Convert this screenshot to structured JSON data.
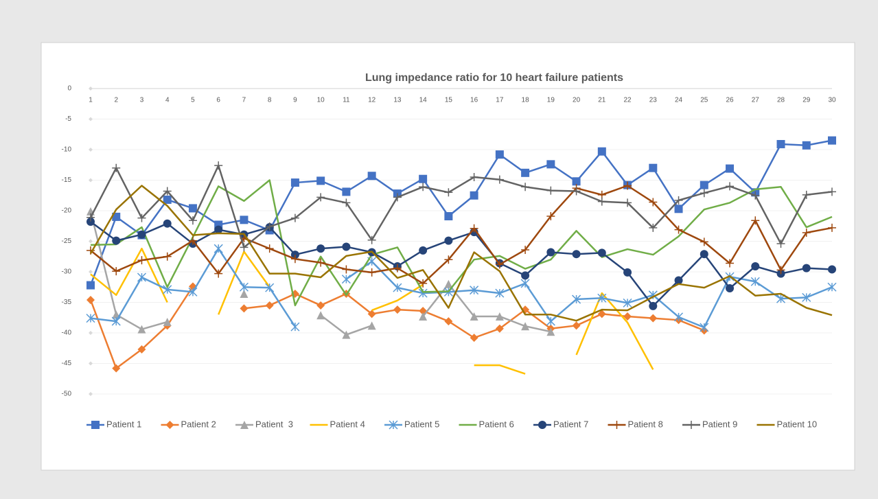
{
  "chart_data": {
    "type": "line",
    "title": "Lung impedance ratio for 10 heart failure patients",
    "categories": [
      "1",
      "2",
      "3",
      "4",
      "5",
      "6",
      "7",
      "8",
      "9",
      "10",
      "11",
      "12",
      "13",
      "14",
      "15",
      "16",
      "17",
      "18",
      "19",
      "20",
      "21",
      "22",
      "23",
      "24",
      "25",
      "26",
      "27",
      "28",
      "29",
      "30"
    ],
    "ylim": [
      -50,
      0
    ],
    "yticks": [
      0,
      -5,
      -10,
      -15,
      -20,
      -25,
      -30,
      -35,
      -40,
      -45,
      -50
    ],
    "grid": true,
    "legend": "bottom",
    "series": [
      {
        "name": "Patient 1",
        "color": "#4472c4",
        "marker": "square",
        "values": [
          -32.2,
          -21,
          -24,
          -18.2,
          -19.6,
          -22.3,
          -21.5,
          -23.2,
          -15.4,
          -15.1,
          -16.9,
          -14.3,
          -17.2,
          -14.8,
          -20.9,
          -17.5,
          -10.8,
          -13.8,
          -12.4,
          -15.2,
          -10.3,
          -15.8,
          -13,
          -19.7,
          -15.8,
          -13.1,
          -17,
          -9.1,
          -9.3,
          -8.5
        ]
      },
      {
        "name": "Patient 2",
        "color": "#ed7d31",
        "marker": "diamond",
        "values": [
          -34.6,
          -45.8,
          -42.7,
          -38.8,
          -32.4,
          null,
          -36,
          -35.5,
          -33.6,
          -35.5,
          -33.6,
          -36.9,
          -36.2,
          -36.4,
          -38.1,
          -40.8,
          -39.3,
          -36.2,
          -39.3,
          -38.8,
          -36.9,
          -37.3,
          -37.6,
          -37.9,
          -39.6,
          null,
          null,
          null,
          null,
          null
        ]
      },
      {
        "name": "Patient  3",
        "color": "#a5a5a5",
        "marker": "triangle",
        "values": [
          -20.1,
          -37,
          -39.4,
          -38.2,
          null,
          null,
          -33.6,
          null,
          null,
          -37.1,
          -40.3,
          -38.8,
          null,
          -37.3,
          -32,
          -37.3,
          -37.3,
          -38.9,
          -39.8,
          null,
          null,
          null,
          null,
          null,
          null,
          null,
          null,
          null,
          null,
          null
        ]
      },
      {
        "name": "Patient 4",
        "color": "#ffc000",
        "marker": "none",
        "values": [
          -30.4,
          -33.8,
          -26.2,
          -35,
          null,
          -37,
          -26.7,
          -32.5,
          null,
          null,
          null,
          -36.3,
          -34.7,
          -32.1,
          null,
          -45.3,
          -45.3,
          -46.7,
          null,
          -43.6,
          -33.5,
          -38.3,
          -46,
          null,
          null,
          null,
          null,
          null,
          null,
          null
        ]
      },
      {
        "name": "Patient 5",
        "color": "#5b9bd5",
        "marker": "asterisk",
        "values": [
          -37.6,
          -38.1,
          -30.9,
          -32.9,
          -33.3,
          -26.2,
          -32.5,
          -32.6,
          -39,
          null,
          -31.2,
          -28.3,
          -32.6,
          -33.5,
          -33.3,
          -33,
          -33.5,
          -31.9,
          -38.1,
          -34.5,
          -34.3,
          -35.1,
          -33.8,
          -37.4,
          -39.1,
          -30.8,
          -31.6,
          -34.4,
          -34.2,
          -32.5
        ]
      },
      {
        "name": "Patient 6",
        "color": "#70ad47",
        "marker": "none",
        "values": [
          -25.6,
          -25.5,
          -22.7,
          -32.5,
          -24.3,
          -16,
          -18.4,
          -15,
          -35.5,
          -27.5,
          -33.8,
          -27.2,
          -26,
          -33.3,
          -33.2,
          -28,
          -27.4,
          -29.5,
          -28,
          -23.3,
          -27.6,
          -26.3,
          -27.2,
          -24.2,
          -19.8,
          -18.7,
          -16.5,
          -16.1,
          -22.7,
          -21
        ]
      },
      {
        "name": "Patient 7",
        "color": "#264478",
        "marker": "circle",
        "values": [
          -21.8,
          -24.9,
          -23.9,
          -22.1,
          -25.4,
          -23.1,
          -23.9,
          -22.7,
          -27.2,
          -26.2,
          -25.9,
          -26.8,
          -29.1,
          -26.5,
          -24.9,
          -23.5,
          -28.6,
          -30.6,
          -26.8,
          -27.1,
          -26.9,
          -30.1,
          -35.6,
          -31.4,
          -27.1,
          -32.7,
          -29.1,
          -30.3,
          -29.4,
          -29.6
        ]
      },
      {
        "name": "Patient 8",
        "color": "#9e480e",
        "marker": "plus",
        "values": [
          -26.5,
          -29.9,
          -28.1,
          -27.5,
          -24.9,
          -30.3,
          -24.5,
          -26.2,
          -27.9,
          -28.5,
          -29.6,
          -30.1,
          -29.4,
          -31.9,
          -28,
          -22.9,
          -28.8,
          -26.4,
          -20.9,
          -16.3,
          -17.4,
          -15.9,
          -18.6,
          -23.1,
          -25.1,
          -28.6,
          -21.6,
          -29.7,
          -23.6,
          -22.8
        ]
      },
      {
        "name": "Patient 9",
        "color": "#636363",
        "marker": "plus",
        "values": [
          -21.1,
          -13,
          -21.2,
          -16.8,
          -21.6,
          -12.6,
          -26,
          -22.6,
          -21.2,
          -17.8,
          -18.7,
          -24.8,
          -17.8,
          -16.1,
          -17,
          -14.5,
          -14.9,
          -16.1,
          -16.7,
          -16.8,
          -18.5,
          -18.7,
          -22.8,
          -18.3,
          -17.1,
          -16,
          -17.5,
          -25.4,
          -17.4,
          -16.9
        ]
      },
      {
        "name": "Patient 10",
        "color": "#997300",
        "marker": "none",
        "values": [
          -27,
          -19.8,
          -15.9,
          -19.2,
          -24,
          -23.7,
          -23.8,
          -30.3,
          -30.3,
          -30.9,
          -27.4,
          -26.7,
          -31,
          -29.7,
          -35.9,
          -26.8,
          -29.9,
          -37,
          -37,
          -38,
          -36.2,
          -36.3,
          -34.1,
          -32,
          -32.6,
          -30.7,
          -33.9,
          -33.6,
          -35.9,
          -37.1
        ]
      }
    ]
  }
}
